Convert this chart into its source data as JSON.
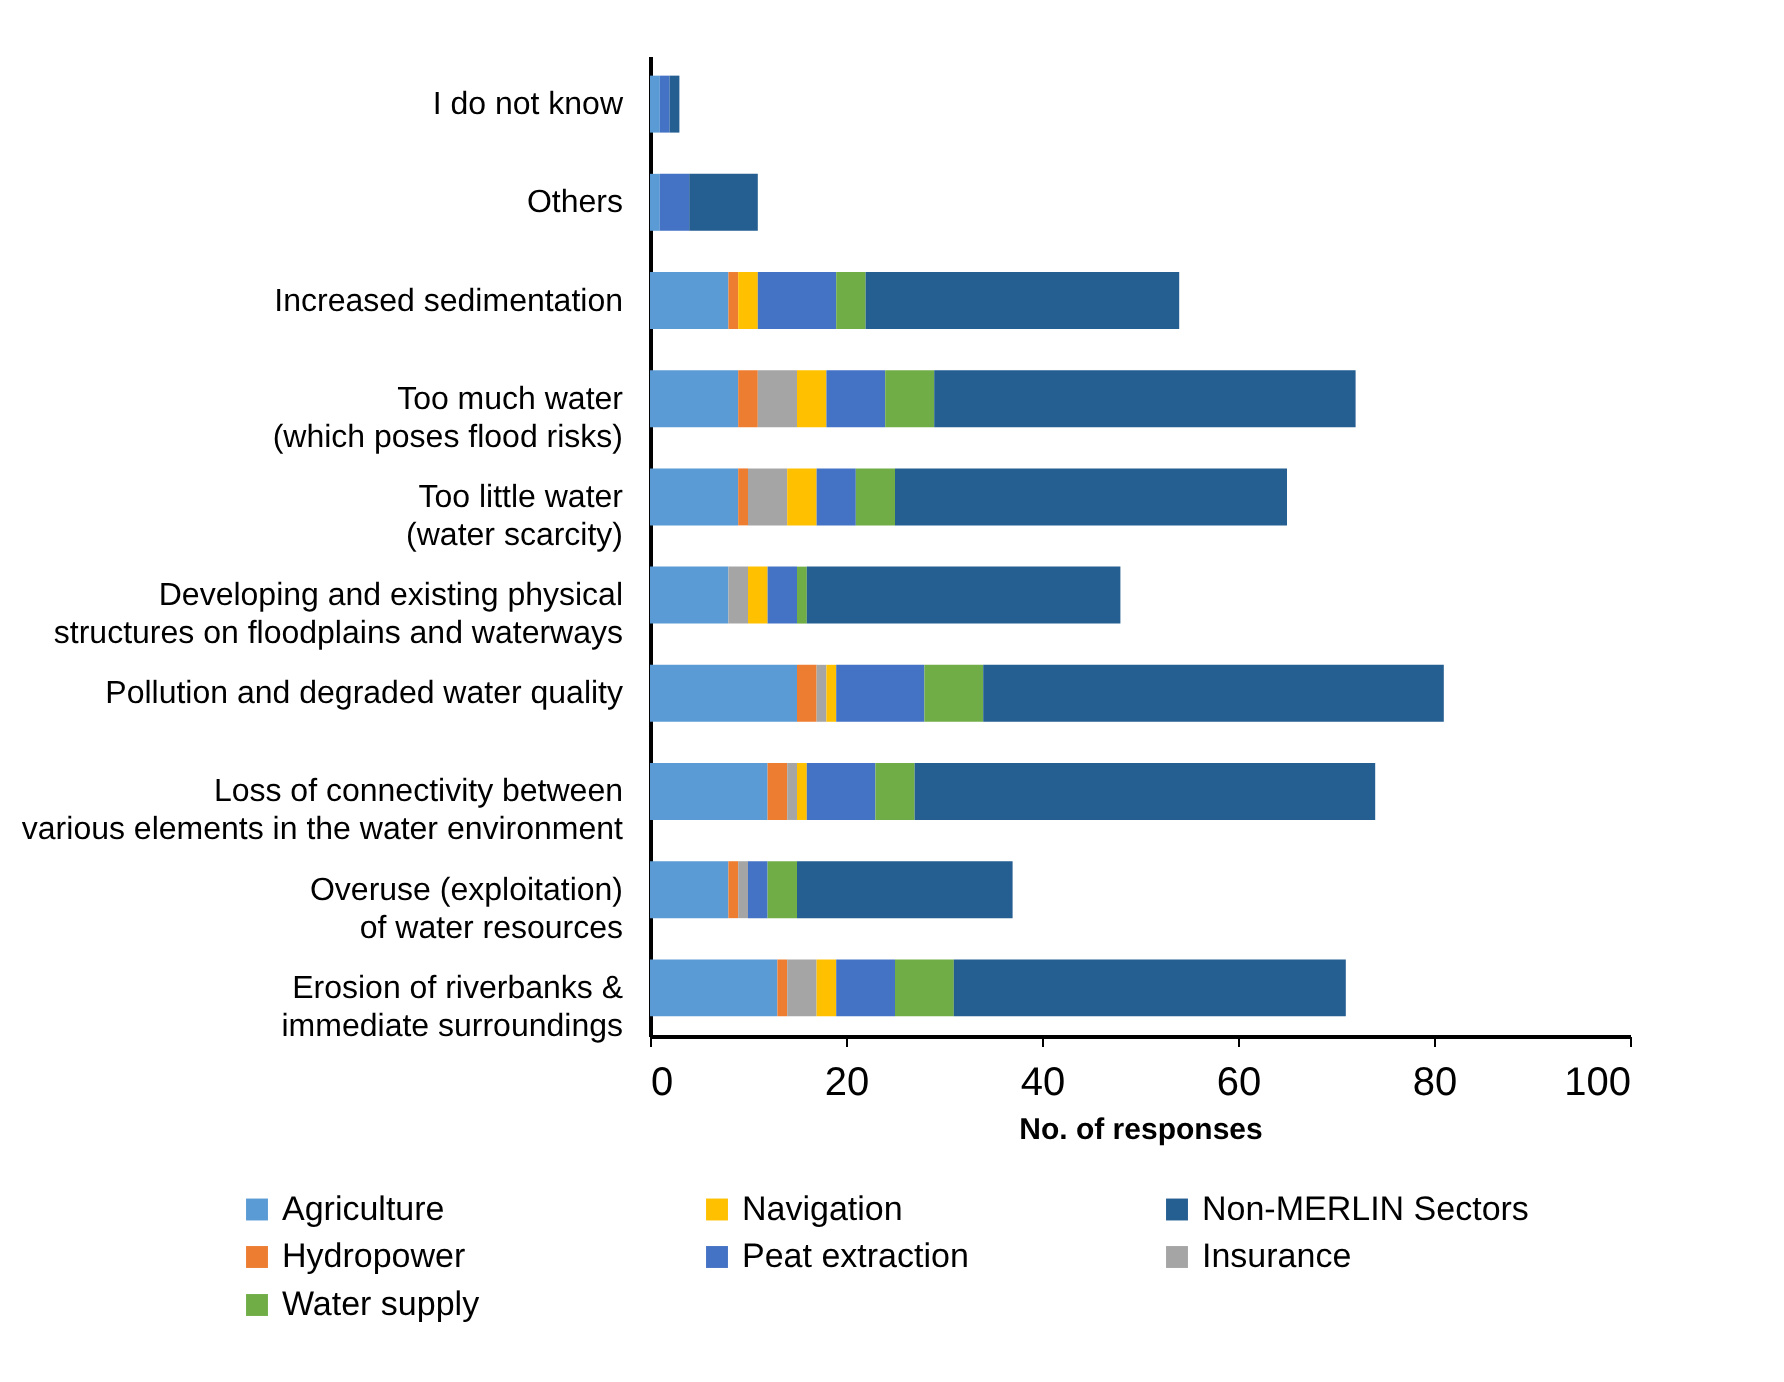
{
  "chart_data": {
    "type": "bar",
    "orientation": "horizontal",
    "stacked": true,
    "xlabel": "No. of responses",
    "categories": [
      "I do not know",
      "Others",
      "Increased sedimentation",
      "Too much water\n(which poses flood risks)",
      "Too little water\n(water scarcity)",
      "Developing and existing physical\nstructures on floodplains and waterways",
      "Pollution and degraded water quality",
      "Loss of connectivity between\nvarious elements in the water environment",
      "Overuse (exploitation)\nof water resources",
      "Erosion of riverbanks &\nimmediate surroundings"
    ],
    "series": [
      {
        "name": "Agriculture",
        "color": "#5b9bd5",
        "values": [
          1,
          1,
          8,
          9,
          9,
          8,
          15,
          12,
          8,
          13
        ]
      },
      {
        "name": "Hydropower",
        "color": "#ed7d31",
        "values": [
          0,
          0,
          1,
          2,
          1,
          0,
          2,
          2,
          1,
          1
        ]
      },
      {
        "name": "Insurance",
        "color": "#a5a5a5",
        "values": [
          0,
          0,
          0,
          4,
          4,
          2,
          1,
          1,
          1,
          3
        ]
      },
      {
        "name": "Navigation",
        "color": "#ffc000",
        "values": [
          0,
          0,
          2,
          3,
          3,
          2,
          1,
          1,
          0,
          2
        ]
      },
      {
        "name": "Peat extraction",
        "color": "#4472c4",
        "values": [
          1,
          3,
          8,
          6,
          4,
          3,
          9,
          7,
          2,
          6
        ]
      },
      {
        "name": "Water supply",
        "color": "#70ad47",
        "values": [
          0,
          0,
          3,
          5,
          4,
          1,
          6,
          4,
          3,
          6
        ]
      },
      {
        "name": "Non-MERLIN Sectors",
        "color": "#255e91",
        "values": [
          1,
          7,
          32,
          43,
          40,
          32,
          47,
          47,
          22,
          40
        ]
      }
    ],
    "xlim": [
      0,
      100
    ],
    "xticks": [
      0,
      20,
      40,
      60,
      80,
      100
    ],
    "grid": false,
    "legend": "bottom"
  }
}
